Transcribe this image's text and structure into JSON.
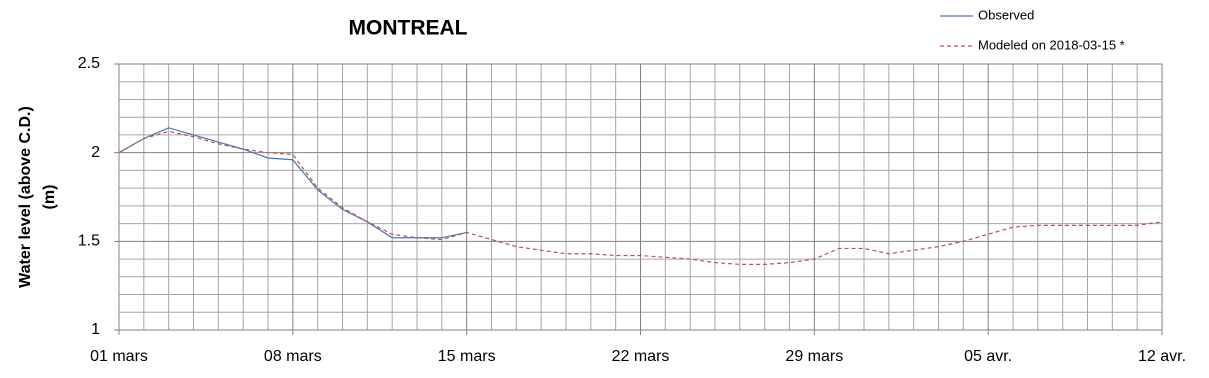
{
  "chart_data": {
    "type": "line",
    "title": "MONTREAL",
    "ylabel_lines": [
      "Water level (above C.D.)",
      "(m)"
    ],
    "x": [
      0,
      1,
      2,
      3,
      4,
      5,
      6,
      7,
      8,
      9,
      10,
      11,
      12,
      13,
      14,
      15,
      16,
      17,
      18,
      19,
      20,
      21,
      22,
      23,
      24,
      25,
      26,
      27,
      28,
      29,
      30,
      31,
      32,
      33,
      34,
      35,
      36,
      37,
      38,
      39,
      40,
      41,
      42
    ],
    "series": [
      {
        "name": "Observed",
        "color": "#4a72c4",
        "dash": false,
        "values": [
          2.0,
          2.08,
          2.14,
          2.1,
          2.06,
          2.02,
          1.97,
          1.96,
          1.79,
          1.68,
          1.61,
          1.52,
          1.52,
          1.52,
          1.55,
          null,
          null,
          null,
          null,
          null,
          null,
          null,
          null,
          null,
          null,
          null,
          null,
          null,
          null,
          null,
          null,
          null,
          null,
          null,
          null,
          null,
          null,
          null,
          null,
          null,
          null,
          null,
          null
        ]
      },
      {
        "name": "Modeled on 2018-03-15 *",
        "color": "#c0504d",
        "dash": true,
        "values": [
          2.0,
          2.08,
          2.12,
          2.09,
          2.05,
          2.02,
          2.0,
          1.99,
          1.8,
          1.69,
          1.61,
          1.54,
          1.52,
          1.51,
          1.55,
          1.51,
          1.47,
          1.45,
          1.43,
          1.43,
          1.42,
          1.42,
          1.41,
          1.4,
          1.38,
          1.37,
          1.37,
          1.38,
          1.4,
          1.46,
          1.46,
          1.43,
          1.45,
          1.47,
          1.5,
          1.54,
          1.58,
          1.59,
          1.59,
          1.59,
          1.59,
          1.59,
          1.61
        ]
      }
    ],
    "xlim": [
      0,
      42
    ],
    "xticks": [
      {
        "value": 0,
        "label": "01 mars"
      },
      {
        "value": 7,
        "label": "08 mars"
      },
      {
        "value": 14,
        "label": "15 mars"
      },
      {
        "value": 21,
        "label": "22 mars"
      },
      {
        "value": 28,
        "label": "29 mars"
      },
      {
        "value": 35,
        "label": "05 avr."
      },
      {
        "value": 42,
        "label": "12 avr."
      }
    ],
    "ylim": [
      1,
      2.5
    ],
    "yticks": [
      1,
      1.5,
      2,
      2.5
    ],
    "grid": true
  }
}
